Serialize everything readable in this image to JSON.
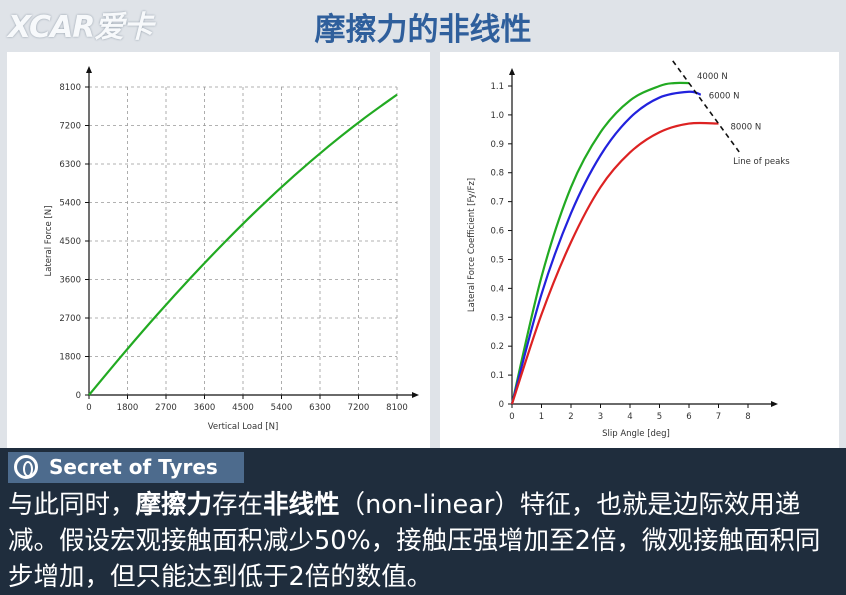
{
  "logo": "XCAR爱卡",
  "title": "摩擦力的非线性",
  "badge": "Secret of Tyres",
  "caption": {
    "p1": "与此同时，",
    "b1": "摩擦力",
    "p2": "存在",
    "b2": "非线性",
    "p3": "（non-linear）特征，也就是边际效用递减。假设宏观接触面积减少50%，接触压强增加至2倍，微观接触面积同步增加，但只能达到低于2倍的数值。"
  },
  "chart_data": [
    {
      "type": "line",
      "xlabel": "Vertical Load [N]",
      "ylabel": "Lateral Force [N]",
      "xlim": [
        0,
        8100
      ],
      "ylim": [
        0,
        8100
      ],
      "x_ticks": [
        "0",
        "1800",
        "2700",
        "3600",
        "4500",
        "5400",
        "6300",
        "7200",
        "8100"
      ],
      "y_ticks": [
        "0",
        "1800",
        "2700",
        "3600",
        "4500",
        "5400",
        "6300",
        "7200",
        "8100"
      ],
      "grid": true,
      "series": [
        {
          "color": "#22aa22",
          "x": [
            0,
            900,
            1800,
            2700,
            3600,
            4500,
            5400,
            6300,
            7200,
            8100
          ],
          "y": [
            0,
            1080,
            2120,
            3110,
            4050,
            4940,
            5770,
            6540,
            7250,
            7900
          ]
        }
      ]
    },
    {
      "type": "line",
      "xlabel": "Slip Angle [deg]",
      "ylabel": "Lateral Force Coefficient [Fy/Fz]",
      "xlim": [
        0,
        8
      ],
      "ylim": [
        0,
        1.1
      ],
      "x_ticks": [
        "0",
        "1",
        "2",
        "3",
        "4",
        "5",
        "6",
        "7",
        "8"
      ],
      "y_ticks": [
        "0",
        "0.1",
        "0.2",
        "0.3",
        "0.4",
        "0.5",
        "0.6",
        "0.7",
        "0.8",
        "0.9",
        "1.0",
        "1.1"
      ],
      "grid": false,
      "series": [
        {
          "name": "4000 N",
          "color": "#22aa22",
          "x": [
            0,
            1,
            2,
            3,
            4,
            5,
            5.5,
            6
          ],
          "y": [
            0,
            0.44,
            0.75,
            0.94,
            1.05,
            1.1,
            1.11,
            1.11
          ]
        },
        {
          "name": "6000 N",
          "color": "#2222dd",
          "x": [
            0,
            1,
            2,
            3,
            4,
            5,
            6,
            6.4
          ],
          "y": [
            0,
            0.38,
            0.66,
            0.86,
            0.99,
            1.06,
            1.08,
            1.07
          ]
        },
        {
          "name": "8000 N",
          "color": "#dd2222",
          "x": [
            0,
            1,
            2,
            3,
            4,
            5,
            6,
            7.0
          ],
          "y": [
            0,
            0.31,
            0.56,
            0.75,
            0.87,
            0.94,
            0.97,
            0.97
          ]
        }
      ],
      "annotation": "Line of peaks"
    }
  ]
}
